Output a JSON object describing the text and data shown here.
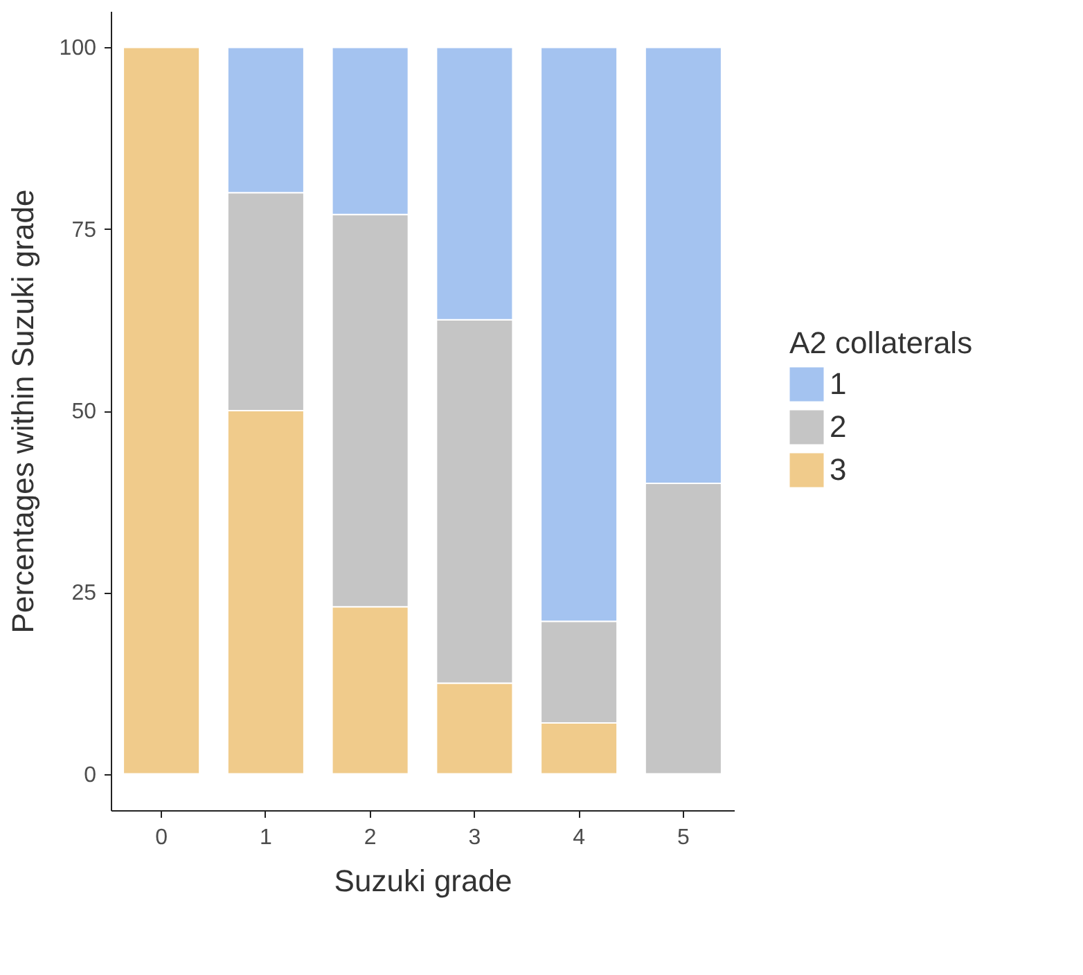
{
  "chart_data": {
    "type": "bar",
    "stacked": true,
    "xlabel": "Suzuki grade",
    "ylabel": "Percentages within Suzuki grade",
    "legend_title": "A2 collaterals",
    "legend": "right",
    "categories": [
      "0",
      "1",
      "2",
      "3",
      "4",
      "5"
    ],
    "series": [
      {
        "name": "3",
        "color": "#f0cb8b",
        "values": [
          100,
          50,
          23,
          12.5,
          7,
          0
        ]
      },
      {
        "name": "2",
        "color": "#c5c5c5",
        "values": [
          0,
          30,
          54,
          50,
          14,
          40
        ]
      },
      {
        "name": "1",
        "color": "#a4c3f0",
        "values": [
          0,
          20,
          23,
          37.5,
          79,
          60
        ]
      }
    ],
    "ylim": [
      -5,
      105
    ],
    "yticks": [
      0,
      25,
      50,
      75,
      100
    ],
    "grid": false
  }
}
